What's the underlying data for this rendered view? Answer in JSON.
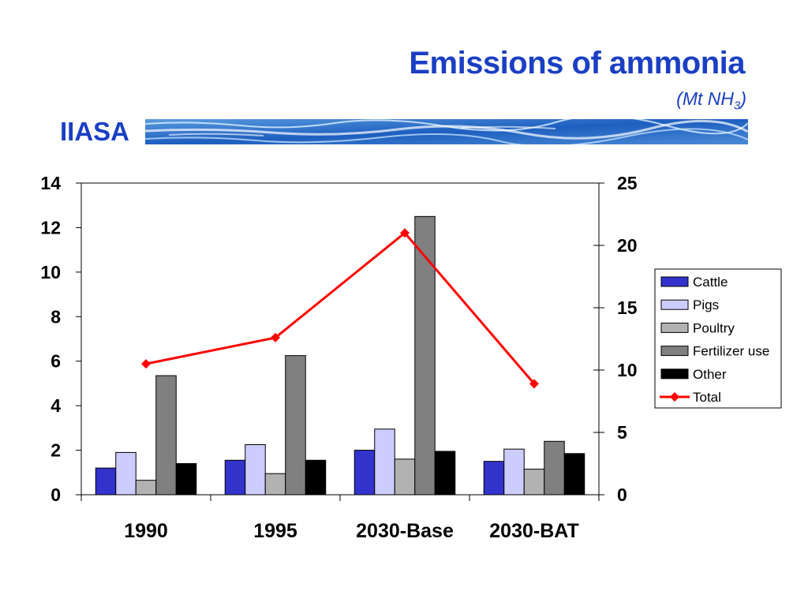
{
  "slide": {
    "title": "Emissions of ammonia",
    "subtitle_main": "(Mt NH",
    "subtitle_sub": "3",
    "subtitle_close": ")",
    "brand": "IIASA"
  },
  "chart_data": {
    "type": "bar",
    "categories": [
      "1990",
      "1995",
      "2030-Base",
      "2030-BAT"
    ],
    "series": [
      {
        "name": "Cattle",
        "type": "bar",
        "axis": "left",
        "color": "#3333cc",
        "values": [
          1.2,
          1.55,
          2.0,
          1.5
        ]
      },
      {
        "name": "Pigs",
        "type": "bar",
        "axis": "left",
        "color": "#ccccff",
        "values": [
          1.9,
          2.25,
          2.95,
          2.05
        ]
      },
      {
        "name": "Poultry",
        "type": "bar",
        "axis": "left",
        "color": "#b2b2b2",
        "values": [
          0.65,
          0.95,
          1.6,
          1.15
        ]
      },
      {
        "name": "Fertilizer use",
        "type": "bar",
        "axis": "left",
        "color": "#808080",
        "values": [
          5.35,
          6.25,
          12.5,
          2.4
        ]
      },
      {
        "name": "Other",
        "type": "bar",
        "axis": "left",
        "color": "#000000",
        "values": [
          1.4,
          1.55,
          1.95,
          1.85
        ]
      },
      {
        "name": "Total",
        "type": "line",
        "axis": "right",
        "color": "#ff0000",
        "values": [
          10.5,
          12.6,
          21.0,
          8.9
        ]
      }
    ],
    "y_left": {
      "min": 0,
      "max": 14,
      "ticks": [
        "0",
        "2",
        "4",
        "6",
        "8",
        "10",
        "12",
        "14"
      ]
    },
    "y_right": {
      "min": 0,
      "max": 25,
      "ticks": [
        "0",
        "5",
        "10",
        "15",
        "20",
        "25"
      ]
    },
    "legend_position": "right",
    "grid": false
  }
}
